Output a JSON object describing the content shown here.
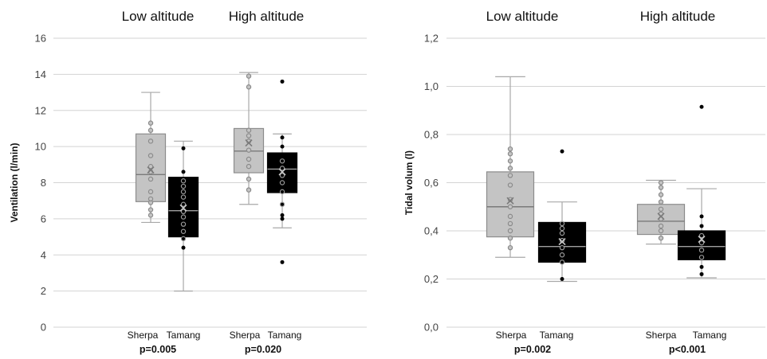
{
  "chart_data": [
    {
      "type": "box",
      "ylabel": "Ventilation (l/min)",
      "ylim": [
        0,
        16
      ],
      "yticks": [
        0,
        2,
        4,
        6,
        8,
        10,
        12,
        14,
        16
      ],
      "grid": true,
      "groups": [
        {
          "title": "Low altitude",
          "p_label": "p=0.005",
          "boxes": [
            {
              "name": "Sherpa",
              "color": "#c4c4c4",
              "min": 5.8,
              "q1": 6.95,
              "median": 8.45,
              "q3": 10.7,
              "max": 13.0,
              "mean": 8.7,
              "points": [
                6.2,
                6.5,
                6.9,
                7.1,
                7.5,
                8.2,
                8.6,
                8.9,
                9.5,
                10.3,
                10.9,
                11.3
              ],
              "outliers": []
            },
            {
              "name": "Tamang",
              "color": "#000000",
              "min": 2.0,
              "q1": 5.0,
              "median": 6.45,
              "q3": 8.3,
              "max": 10.3,
              "mean": 6.6,
              "points": [
                4.9,
                5.3,
                5.7,
                6.1,
                6.4,
                6.8,
                7.2,
                7.5,
                7.8,
                8.1
              ],
              "outliers": [
                4.4,
                8.6,
                9.9
              ]
            }
          ]
        },
        {
          "title": "High altitude",
          "p_label": "p=0.020",
          "boxes": [
            {
              "name": "Sherpa",
              "color": "#c4c4c4",
              "min": 6.8,
              "q1": 8.55,
              "median": 9.75,
              "q3": 11.0,
              "max": 14.1,
              "mean": 10.2,
              "points": [
                7.6,
                8.2,
                8.9,
                9.3,
                9.8,
                10.3,
                10.6,
                10.9,
                13.3,
                13.9
              ],
              "outliers": []
            },
            {
              "name": "Tamang",
              "color": "#000000",
              "min": 5.5,
              "q1": 7.45,
              "median": 8.75,
              "q3": 9.65,
              "max": 10.7,
              "mean": 8.6,
              "points": [
                6.8,
                7.5,
                8.0,
                8.4,
                8.8,
                9.2
              ],
              "outliers": [
                3.6,
                6.0,
                6.2,
                10.0,
                10.5,
                13.6
              ]
            }
          ]
        }
      ]
    },
    {
      "type": "box",
      "ylabel": "Tidal volum (l)",
      "ylim": [
        0,
        1.2
      ],
      "yticks": [
        "0,0",
        "0,2",
        "0,4",
        "0,6",
        "0,8",
        "1,0",
        "1,2"
      ],
      "grid": true,
      "groups": [
        {
          "title": "Low altitude",
          "p_label": "p=0.002",
          "boxes": [
            {
              "name": "Sherpa",
              "color": "#c4c4c4",
              "min": 0.29,
              "q1": 0.375,
              "median": 0.5,
              "q3": 0.645,
              "max": 1.04,
              "mean": 0.525,
              "points": [
                0.33,
                0.37,
                0.4,
                0.43,
                0.46,
                0.5,
                0.53,
                0.59,
                0.63,
                0.66,
                0.69,
                0.72,
                0.74
              ],
              "outliers": []
            },
            {
              "name": "Tamang",
              "color": "#000000",
              "min": 0.19,
              "q1": 0.27,
              "median": 0.335,
              "q3": 0.435,
              "max": 0.52,
              "mean": 0.355,
              "points": [
                0.27,
                0.3,
                0.33,
                0.36,
                0.39,
                0.41,
                0.43
              ],
              "outliers": [
                0.2,
                0.73
              ]
            }
          ]
        },
        {
          "title": "High altitude",
          "p_label": "p<0.001",
          "boxes": [
            {
              "name": "Sherpa",
              "color": "#c4c4c4",
              "min": 0.345,
              "q1": 0.385,
              "median": 0.44,
              "q3": 0.51,
              "max": 0.61,
              "mean": 0.46,
              "points": [
                0.37,
                0.4,
                0.42,
                0.45,
                0.47,
                0.49,
                0.52,
                0.55,
                0.58,
                0.6
              ],
              "outliers": []
            },
            {
              "name": "Tamang",
              "color": "#000000",
              "min": 0.205,
              "q1": 0.28,
              "median": 0.335,
              "q3": 0.4,
              "max": 0.575,
              "mean": 0.365,
              "points": [
                0.29,
                0.32,
                0.35,
                0.38
              ],
              "outliers": [
                0.22,
                0.25,
                0.42,
                0.46,
                0.915
              ]
            }
          ]
        }
      ]
    }
  ]
}
